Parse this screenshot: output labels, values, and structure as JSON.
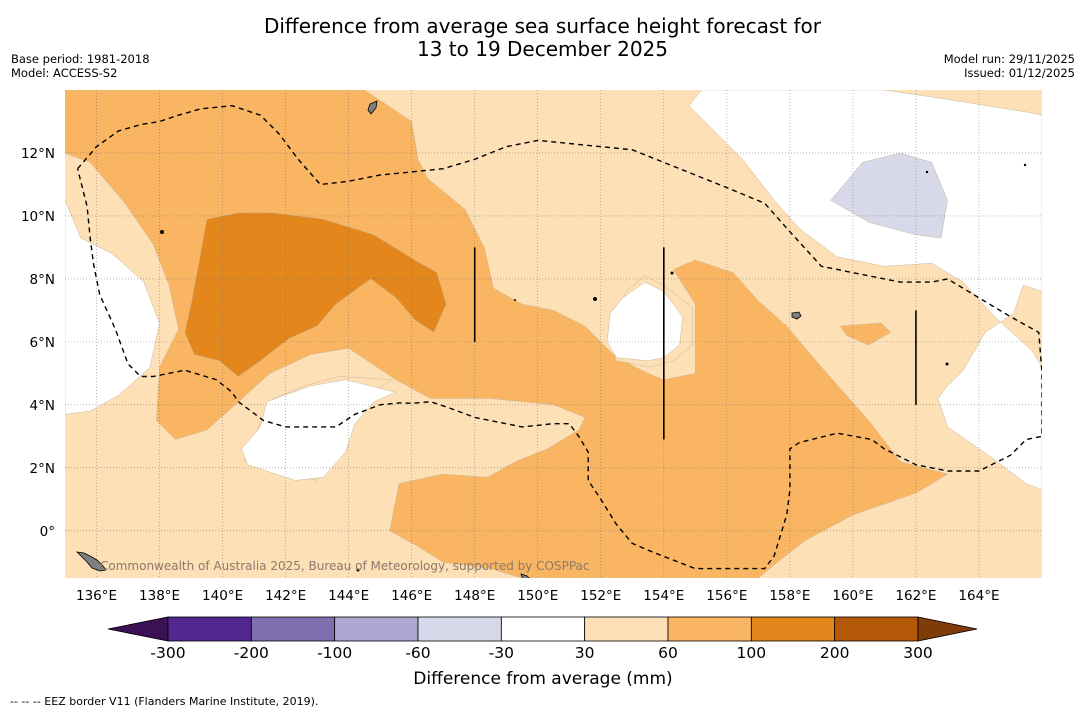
{
  "header": {
    "title_line1": "Difference from average sea surface height forecast for",
    "title_line2": "13 to 19 December 2025",
    "base_period": "Base period: 1981-2018",
    "model": "Model: ACCESS-S2",
    "model_run": "Model run: 29/11/2025",
    "issued": "Issued: 01/12/2025"
  },
  "map": {
    "lon_min": 135,
    "lon_max": 166,
    "lat_min": -1.5,
    "lat_max": 14,
    "lon_ticks": [
      136,
      138,
      140,
      142,
      144,
      146,
      148,
      150,
      152,
      154,
      156,
      158,
      160,
      162,
      164
    ],
    "lon_tick_labels": [
      "136°E",
      "138°E",
      "140°E",
      "142°E",
      "144°E",
      "146°E",
      "148°E",
      "150°E",
      "152°E",
      "154°E",
      "156°E",
      "158°E",
      "160°E",
      "162°E",
      "164°E"
    ],
    "lat_ticks": [
      0,
      2,
      4,
      6,
      8,
      10,
      12
    ],
    "lat_tick_labels": [
      "0°",
      "2°N",
      "4°N",
      "6°N",
      "8°N",
      "10°N",
      "12°N"
    ],
    "attribution": "Commonwealth of Australia 2025, Bureau of Meteorology, supported by COSPPac",
    "background_color": "#fde0b6",
    "regions": [
      {
        "band": "60-100",
        "color": "#f9b562",
        "points": [
          [
            135,
            14
          ],
          [
            139,
            14
          ],
          [
            144.5,
            14
          ],
          [
            146,
            13
          ],
          [
            146.2,
            11.8
          ],
          [
            146.5,
            11.2
          ],
          [
            147.7,
            10.2
          ],
          [
            148.3,
            9
          ],
          [
            148.6,
            7.7
          ],
          [
            149.5,
            7.2
          ],
          [
            150.5,
            7
          ],
          [
            151.5,
            6.5
          ],
          [
            152.5,
            5.5
          ],
          [
            153.5,
            5
          ],
          [
            154,
            4.8
          ],
          [
            155,
            5
          ],
          [
            155,
            7.2
          ],
          [
            154.3,
            8.3
          ],
          [
            155,
            8.6
          ],
          [
            156.2,
            8.2
          ],
          [
            157,
            7.3
          ],
          [
            157.9,
            6.5
          ],
          [
            159,
            5.2
          ],
          [
            160.5,
            3.5
          ],
          [
            161.5,
            2.2
          ],
          [
            163,
            1.8
          ],
          [
            162,
            1.2
          ],
          [
            160,
            0.5
          ],
          [
            158.5,
            -0.3
          ],
          [
            157.6,
            -1
          ],
          [
            157,
            -1.5
          ],
          [
            150.5,
            -1.5
          ],
          [
            149.5,
            -1.5
          ],
          [
            148.5,
            -1.2
          ],
          [
            147,
            -1
          ],
          [
            146.2,
            -0.5
          ],
          [
            145.3,
            0
          ],
          [
            145.6,
            1.5
          ],
          [
            147,
            1.8
          ],
          [
            148.4,
            1.7
          ],
          [
            149.3,
            2.2
          ],
          [
            150.3,
            2.6
          ],
          [
            151.3,
            3.2
          ],
          [
            151.5,
            3.6
          ],
          [
            150.5,
            4
          ],
          [
            148.5,
            4.2
          ],
          [
            146.6,
            4.2
          ],
          [
            145.5,
            4.8
          ],
          [
            144,
            5.8
          ],
          [
            142.8,
            5.6
          ],
          [
            141.5,
            5
          ],
          [
            140.4,
            4
          ],
          [
            139.5,
            3.2
          ],
          [
            138.5,
            2.9
          ],
          [
            137.9,
            3.5
          ],
          [
            138,
            5.2
          ],
          [
            138.6,
            6.4
          ],
          [
            138.3,
            7.8
          ],
          [
            137.8,
            9.1
          ],
          [
            136.9,
            10.4
          ],
          [
            135.8,
            11.7
          ],
          [
            135,
            12
          ]
        ]
      },
      {
        "band": "100-200",
        "color": "#e3861b",
        "points": [
          [
            139.5,
            9.9
          ],
          [
            140.5,
            10.1
          ],
          [
            141.6,
            10.1
          ],
          [
            143.2,
            9.9
          ],
          [
            144.8,
            9.4
          ],
          [
            146.1,
            8.6
          ],
          [
            146.8,
            8.2
          ],
          [
            147.1,
            7.2
          ],
          [
            146.7,
            6.3
          ],
          [
            146.1,
            6.7
          ],
          [
            145.5,
            7.4
          ],
          [
            144.7,
            8
          ],
          [
            143.6,
            7.2
          ],
          [
            143,
            6.5
          ],
          [
            142.1,
            6.1
          ],
          [
            141.2,
            5.4
          ],
          [
            140.5,
            4.9
          ],
          [
            139.9,
            5.4
          ],
          [
            139.1,
            5.6
          ],
          [
            138.8,
            6.3
          ],
          [
            139,
            7.2
          ],
          [
            139.3,
            8.8
          ]
        ]
      },
      {
        "band": "30-60",
        "color": "#fde0b6",
        "points": [
          [
            145.4,
            4.8
          ],
          [
            144.6,
            4.3
          ],
          [
            144,
            3.4
          ],
          [
            143.6,
            2.4
          ],
          [
            143,
            1.6
          ],
          [
            142.5,
            1.7
          ],
          [
            141.1,
            2.2
          ],
          [
            140.7,
            2.2
          ],
          [
            141.1,
            3.2
          ],
          [
            141.6,
            4.2
          ],
          [
            142.6,
            4.6
          ],
          [
            143.7,
            4.9
          ]
        ]
      },
      {
        "band": "30-60",
        "color": "#fde0b6",
        "points": [
          [
            153.4,
            8.1
          ],
          [
            154,
            7.8
          ],
          [
            154.9,
            7.1
          ],
          [
            154.9,
            5.9
          ],
          [
            154.3,
            5.4
          ],
          [
            153.6,
            5.2
          ],
          [
            152.5,
            5.4
          ],
          [
            152.3,
            6
          ],
          [
            152.5,
            7
          ],
          [
            152.8,
            7.6
          ]
        ]
      },
      {
        "band": "60-100",
        "color": "#f9b562",
        "points": [
          [
            159.6,
            6.5
          ],
          [
            160.9,
            6.6
          ],
          [
            161.2,
            6.3
          ],
          [
            160.5,
            5.9
          ],
          [
            159.8,
            6.2
          ]
        ]
      },
      {
        "band": "-30-30",
        "color": "#ffffff",
        "points": [
          [
            145.5,
            4.4
          ],
          [
            144.8,
            4.1
          ],
          [
            144.2,
            3.4
          ],
          [
            143.9,
            2.5
          ],
          [
            143.2,
            1.7
          ],
          [
            142.3,
            1.6
          ],
          [
            140.8,
            2.1
          ],
          [
            140.6,
            2.6
          ],
          [
            141.2,
            3.3
          ],
          [
            141.4,
            4.1
          ],
          [
            142.8,
            4.6
          ],
          [
            143.9,
            4.8
          ]
        ]
      },
      {
        "band": "-30-30",
        "color": "#ffffff",
        "points": [
          [
            153.4,
            7.9
          ],
          [
            154,
            7.6
          ],
          [
            154.6,
            6.8
          ],
          [
            154.5,
            5.9
          ],
          [
            154,
            5.5
          ],
          [
            153.5,
            5.4
          ],
          [
            152.5,
            5.5
          ],
          [
            152.2,
            6
          ],
          [
            152.3,
            6.9
          ],
          [
            152.7,
            7.4
          ]
        ]
      },
      {
        "band": "-30-30",
        "color": "#ffffff",
        "points": [
          [
            135,
            10.5
          ],
          [
            135.5,
            9.3
          ],
          [
            136.5,
            8.8
          ],
          [
            137.5,
            7.9
          ],
          [
            138,
            6.6
          ],
          [
            137.7,
            5.2
          ],
          [
            136.7,
            4.3
          ],
          [
            135.8,
            3.8
          ],
          [
            135,
            3.7
          ]
        ]
      },
      {
        "band": "-30-30",
        "color": "#ffffff",
        "points": [
          [
            155.2,
            14
          ],
          [
            157.2,
            14
          ],
          [
            158.7,
            14
          ],
          [
            161,
            14
          ],
          [
            163,
            13.7
          ],
          [
            165.5,
            13.3
          ],
          [
            166,
            13.2
          ],
          [
            166,
            7.6
          ],
          [
            165.4,
            7.8
          ],
          [
            165.1,
            6.9
          ],
          [
            164.2,
            6.3
          ],
          [
            163.5,
            5.1
          ],
          [
            163,
            4.6
          ],
          [
            162.7,
            4.2
          ],
          [
            163,
            3.3
          ],
          [
            164.3,
            2.4
          ],
          [
            165.5,
            1.5
          ],
          [
            166,
            1.3
          ],
          [
            166,
            5.2
          ],
          [
            165.7,
            5.7
          ],
          [
            164.5,
            6.8
          ],
          [
            163.5,
            7.9
          ],
          [
            162.5,
            8.5
          ],
          [
            161,
            8.4
          ],
          [
            159.5,
            8.7
          ],
          [
            158.3,
            9.6
          ],
          [
            157.5,
            10.5
          ],
          [
            156.5,
            11.8
          ],
          [
            155.5,
            12.8
          ],
          [
            154.8,
            13.5
          ]
        ]
      },
      {
        "band": "-60--30",
        "color": "#d8d8eb",
        "points": [
          [
            159.3,
            10.5
          ],
          [
            160.3,
            11.7
          ],
          [
            161.5,
            12
          ],
          [
            162.5,
            11.7
          ],
          [
            163,
            10.5
          ],
          [
            162.8,
            9.3
          ],
          [
            162,
            9.4
          ],
          [
            160.5,
            9.8
          ]
        ]
      }
    ],
    "borders": [
      [
        [
          135.4,
          11.5
        ],
        [
          136,
          12.2
        ],
        [
          136.7,
          12.7
        ],
        [
          137.4,
          12.9
        ],
        [
          138,
          13
        ],
        [
          138.6,
          13.2
        ],
        [
          139.3,
          13.4
        ],
        [
          140.3,
          13.5
        ],
        [
          141.2,
          13.2
        ],
        [
          141.8,
          12.6
        ],
        [
          142.4,
          11.8
        ],
        [
          143.1,
          11
        ],
        [
          144,
          11.1
        ],
        [
          145,
          11.3
        ],
        [
          146,
          11.4
        ],
        [
          147,
          11.5
        ],
        [
          148,
          11.8
        ],
        [
          149,
          12.2
        ],
        [
          150,
          12.4
        ],
        [
          151,
          12.3
        ],
        [
          152,
          12.2
        ],
        [
          153,
          12.1
        ],
        [
          154,
          11.7
        ],
        [
          155,
          11.3
        ],
        [
          156,
          10.9
        ],
        [
          157.2,
          10.4
        ],
        [
          158,
          9.5
        ],
        [
          159,
          8.4
        ],
        [
          160.5,
          8.1
        ],
        [
          161.5,
          7.9
        ],
        [
          162.5,
          7.9
        ],
        [
          163,
          8
        ],
        [
          164,
          7.4
        ],
        [
          165,
          6.8
        ],
        [
          165.9,
          6.3
        ],
        [
          166,
          5
        ],
        [
          166,
          3
        ],
        [
          165.5,
          2.9
        ],
        [
          165,
          2.4
        ],
        [
          164,
          1.9
        ],
        [
          163,
          1.9
        ],
        [
          162,
          2.1
        ],
        [
          161,
          2.6
        ],
        [
          160.6,
          2.9
        ],
        [
          159.5,
          3.1
        ],
        [
          158.3,
          2.8
        ],
        [
          158,
          2.6
        ],
        [
          158,
          1.3
        ],
        [
          157.9,
          0.5
        ],
        [
          157.5,
          -0.8
        ],
        [
          157.2,
          -1.2
        ],
        [
          156,
          -1.2
        ],
        [
          155,
          -1.2
        ],
        [
          153.7,
          -0.7
        ],
        [
          153,
          -0.4
        ],
        [
          152.5,
          0.2
        ],
        [
          152,
          1
        ],
        [
          151.6,
          1.6
        ],
        [
          151.6,
          2.5
        ],
        [
          151.3,
          3
        ],
        [
          151,
          3.4
        ],
        [
          150.5,
          3.4
        ],
        [
          149.5,
          3.3
        ],
        [
          149,
          3.4
        ],
        [
          148,
          3.6
        ],
        [
          147.2,
          3.9
        ],
        [
          146.6,
          4.1
        ],
        [
          146,
          4.05
        ],
        [
          145.6,
          4.06
        ],
        [
          145,
          4
        ],
        [
          144.2,
          3.7
        ],
        [
          143.6,
          3.3
        ],
        [
          142.8,
          3.3
        ],
        [
          142,
          3.3
        ],
        [
          141.3,
          3.5
        ],
        [
          140.5,
          4.1
        ],
        [
          140.3,
          4.4
        ],
        [
          139.8,
          4.8
        ],
        [
          138.8,
          5.1
        ],
        [
          137.8,
          4.9
        ],
        [
          137.4,
          4.9
        ],
        [
          137,
          5.3
        ],
        [
          136.6,
          6.4
        ],
        [
          136.1,
          7.5
        ],
        [
          135.9,
          8.5
        ],
        [
          135.8,
          9.3
        ],
        [
          135.7,
          10.3
        ],
        [
          135.4,
          11.5
        ]
      ]
    ],
    "black_lines": [
      [
        [
          148,
          9
        ],
        [
          148,
          6
        ]
      ],
      [
        [
          154,
          9
        ],
        [
          154,
          2.9
        ]
      ],
      [
        [
          162,
          7
        ],
        [
          162,
          4
        ]
      ]
    ]
  },
  "legend": {
    "title": "Difference from average (mm)",
    "bands": [
      {
        "color": "#3b1054",
        "label": "-300"
      },
      {
        "color": "#54278f",
        "label": "-200"
      },
      {
        "color": "#7d6fb0",
        "label": "-100"
      },
      {
        "color": "#aea7d1",
        "label": "-60"
      },
      {
        "color": "#d8d8eb",
        "label": "-30"
      },
      {
        "color": "#ffffff",
        "label": "30"
      },
      {
        "color": "#fde0b6",
        "label": "60"
      },
      {
        "color": "#f9b562",
        "label": "100"
      },
      {
        "color": "#e3861b",
        "label": "200"
      },
      {
        "color": "#b35806",
        "label": "300"
      },
      {
        "color": "#7f3b08",
        "label": ""
      }
    ]
  },
  "footer": {
    "note": "--  --  -- EEZ border V11 (Flanders Marine Institute, 2019)."
  }
}
